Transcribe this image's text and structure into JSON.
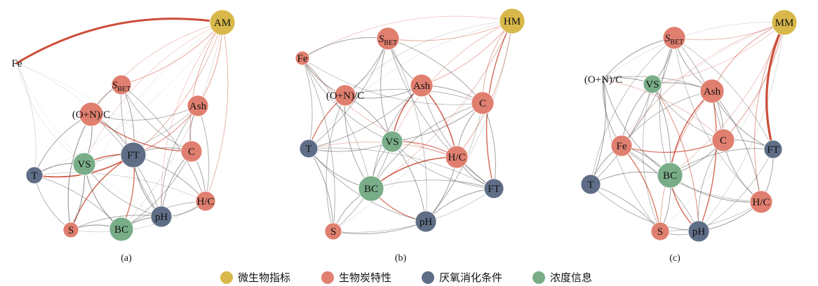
{
  "colors": {
    "microbe": "#d8b84a",
    "biochar": "#e07f6f",
    "anaerobic": "#5f6e86",
    "concentration": "#78ad88",
    "edge_gray": "#444444",
    "edge_red": "#c9442e"
  },
  "legend": [
    {
      "label": "微生物指标",
      "category": "microbe"
    },
    {
      "label": "生物炭特性",
      "category": "biochar"
    },
    {
      "label": "厌氧消化条件",
      "category": "anaerobic"
    },
    {
      "label": "浓度信息",
      "category": "concentration"
    }
  ],
  "panels": [
    {
      "id": "a",
      "label": "(a)",
      "nodes": [
        {
          "id": "AM",
          "text": "AM",
          "category": "microbe"
        },
        {
          "id": "Fe",
          "text": "Fe",
          "category": "biochar"
        },
        {
          "id": "SBET",
          "text": "S",
          "sub": "BET",
          "category": "biochar"
        },
        {
          "id": "ONC",
          "text": "(O+N)/C",
          "category": "biochar"
        },
        {
          "id": "Ash",
          "text": "Ash",
          "category": "biochar"
        },
        {
          "id": "C",
          "text": "C",
          "category": "biochar"
        },
        {
          "id": "FT",
          "text": "FT",
          "category": "anaerobic"
        },
        {
          "id": "VS",
          "text": "VS",
          "category": "concentration"
        },
        {
          "id": "T",
          "text": "T",
          "category": "anaerobic"
        },
        {
          "id": "HC",
          "text": "H/C",
          "category": "biochar"
        },
        {
          "id": "pH",
          "text": "pH",
          "category": "anaerobic"
        },
        {
          "id": "BC",
          "text": "BC",
          "category": "concentration"
        },
        {
          "id": "S",
          "text": "S",
          "category": "biochar"
        }
      ]
    },
    {
      "id": "b",
      "label": "(b)",
      "nodes": [
        {
          "id": "HM",
          "text": "HM",
          "category": "microbe"
        },
        {
          "id": "SBET",
          "text": "S",
          "sub": "BET",
          "category": "biochar"
        },
        {
          "id": "Fe",
          "text": "Fe",
          "category": "biochar"
        },
        {
          "id": "ONC",
          "text": "(O+N)/C",
          "category": "biochar"
        },
        {
          "id": "Ash",
          "text": "Ash",
          "category": "biochar"
        },
        {
          "id": "C",
          "text": "C",
          "category": "biochar"
        },
        {
          "id": "VS",
          "text": "VS",
          "category": "concentration"
        },
        {
          "id": "T",
          "text": "T",
          "category": "anaerobic"
        },
        {
          "id": "HC",
          "text": "H/C",
          "category": "biochar"
        },
        {
          "id": "BC",
          "text": "BC",
          "category": "concentration"
        },
        {
          "id": "FT",
          "text": "FT",
          "category": "anaerobic"
        },
        {
          "id": "pH",
          "text": "pH",
          "category": "anaerobic"
        },
        {
          "id": "S",
          "text": "S",
          "category": "biochar"
        }
      ]
    },
    {
      "id": "c",
      "label": "(c)",
      "nodes": [
        {
          "id": "MM",
          "text": "MM",
          "category": "microbe"
        },
        {
          "id": "SBET",
          "text": "S",
          "sub": "BET",
          "category": "biochar"
        },
        {
          "id": "ONC",
          "text": "(O+N)/C",
          "category": "biochar"
        },
        {
          "id": "VS",
          "text": "VS",
          "category": "concentration"
        },
        {
          "id": "Ash",
          "text": "Ash",
          "category": "biochar"
        },
        {
          "id": "Fe",
          "text": "Fe",
          "category": "biochar"
        },
        {
          "id": "C",
          "text": "C",
          "category": "biochar"
        },
        {
          "id": "FT",
          "text": "FT",
          "category": "anaerobic"
        },
        {
          "id": "BC",
          "text": "BC",
          "category": "concentration"
        },
        {
          "id": "T",
          "text": "T",
          "category": "anaerobic"
        },
        {
          "id": "HC",
          "text": "H/C",
          "category": "biochar"
        },
        {
          "id": "S",
          "text": "S",
          "category": "biochar"
        },
        {
          "id": "pH",
          "text": "pH",
          "category": "anaerobic"
        }
      ]
    }
  ]
}
